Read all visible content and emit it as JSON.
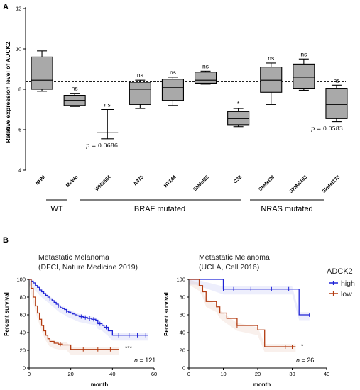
{
  "panel_a_label": "A",
  "panel_b_label": "B",
  "chart_data": [
    {
      "type": "box",
      "ylabel": "Relative expression level of ADCK2",
      "ylim": [
        4,
        12
      ],
      "yticks": [
        "4",
        "6",
        "8",
        "10",
        "12"
      ],
      "reference_line": 8.4,
      "categories": [
        "NHM",
        "MeWo",
        "WM2664",
        "A375",
        "HT144",
        "SkMel28",
        "C32",
        "SkMel30",
        "SkMel103",
        "SkMel173"
      ],
      "boxes": [
        {
          "min": 7.9,
          "q1": 8.0,
          "median": 8.45,
          "q3": 9.6,
          "max": 9.9,
          "sig": ""
        },
        {
          "min": 7.15,
          "q1": 7.2,
          "median": 7.45,
          "q3": 7.7,
          "max": 7.8,
          "sig": "ns"
        },
        {
          "min": 5.55,
          "q1": 5.85,
          "median": 5.85,
          "q3": 5.85,
          "max": 7.0,
          "sig": "ns",
          "style": "line"
        },
        {
          "min": 7.05,
          "q1": 7.25,
          "median": 8.0,
          "q3": 8.35,
          "max": 8.45,
          "sig": "ns"
        },
        {
          "min": 7.2,
          "q1": 7.45,
          "median": 8.1,
          "q3": 8.5,
          "max": 8.6,
          "sig": "ns"
        },
        {
          "min": 8.25,
          "q1": 8.3,
          "median": 8.45,
          "q3": 8.85,
          "max": 8.9,
          "sig": "ns"
        },
        {
          "min": 6.15,
          "q1": 6.25,
          "median": 6.55,
          "q3": 6.9,
          "max": 7.05,
          "sig": "*"
        },
        {
          "min": 7.25,
          "q1": 7.85,
          "median": 8.45,
          "q3": 9.1,
          "max": 9.3,
          "sig": "ns"
        },
        {
          "min": 7.95,
          "q1": 8.05,
          "median": 8.6,
          "q3": 9.25,
          "max": 9.5,
          "sig": "ns"
        },
        {
          "min": 6.4,
          "q1": 6.55,
          "median": 7.25,
          "q3": 8.05,
          "max": 8.2,
          "sig": "ns"
        }
      ],
      "p_annotations": [
        {
          "prefix": "p",
          "text": " = 0.0686"
        },
        {
          "prefix": "p",
          "text": " = 0.0583"
        }
      ],
      "groups": [
        {
          "label": "WT"
        },
        {
          "label": "BRAF mutated"
        },
        {
          "label": "NRAS mutated"
        }
      ]
    },
    {
      "type": "line",
      "title_line1": "Metastatic Melanoma",
      "title_line2": "(DFCI, Nature Medicine 2019)",
      "ylabel": "Percent survival",
      "xlabel": "month",
      "xlim": [
        0,
        60
      ],
      "ylim": [
        0,
        100
      ],
      "xticks": [
        "0",
        "20",
        "40",
        "60"
      ],
      "yticks": [
        "0",
        "20",
        "40",
        "60",
        "80",
        "100"
      ],
      "sig": "***",
      "n_prefix": "n",
      "n_text": " = 121",
      "series": [
        {
          "name": "high",
          "color": "#1f23d6",
          "x": [
            0,
            1,
            2,
            3,
            4,
            5,
            6,
            7,
            8,
            9,
            10,
            11,
            12,
            13,
            14,
            15,
            16,
            17,
            18,
            19,
            20,
            21,
            22,
            23,
            24,
            26,
            28,
            30,
            32,
            33,
            35,
            36,
            38,
            40,
            45,
            50,
            55,
            57
          ],
          "y": [
            100,
            98,
            96,
            93,
            91,
            88,
            86,
            84,
            82,
            80,
            78,
            76,
            74,
            72,
            70,
            68,
            67,
            66,
            64,
            63,
            62,
            61,
            60,
            59,
            58,
            57,
            56,
            55,
            54,
            50,
            48,
            46,
            42,
            37,
            37,
            37,
            37,
            37
          ],
          "censor_x": [
            10,
            14,
            18,
            22,
            25,
            27,
            29,
            31,
            34,
            37,
            43,
            48,
            52,
            56
          ]
        },
        {
          "name": "low",
          "color": "#b33b10",
          "x": [
            0,
            1,
            2,
            3,
            4,
            5,
            6,
            7,
            8,
            9,
            10,
            12,
            14,
            16,
            18,
            20,
            25,
            30,
            35,
            40,
            43
          ],
          "y": [
            100,
            90,
            80,
            70,
            62,
            55,
            48,
            42,
            37,
            33,
            30,
            28,
            27,
            26,
            26,
            21,
            21,
            21,
            21,
            21,
            21
          ],
          "censor_x": [
            15,
            26,
            33,
            39
          ]
        }
      ]
    },
    {
      "type": "line",
      "title_line1": "Metastatic Melanoma",
      "title_line2": "(UCLA, Cell 2016)",
      "ylabel": "Percent survival",
      "xlabel": "month",
      "xlim": [
        0,
        40
      ],
      "ylim": [
        0,
        100
      ],
      "xticks": [
        "0",
        "10",
        "20",
        "30",
        "40"
      ],
      "yticks": [
        "0",
        "20",
        "40",
        "60",
        "80",
        "100"
      ],
      "sig": "*",
      "n_prefix": "n",
      "n_text": " = 26",
      "legend_title": "ADCK2",
      "series": [
        {
          "name": "high",
          "color": "#1f23d6",
          "x": [
            0,
            2,
            10,
            12,
            15,
            20,
            25,
            30,
            32,
            35
          ],
          "y": [
            100,
            100,
            89,
            89,
            89,
            89,
            89,
            89,
            60,
            60
          ],
          "censor_x": [
            10,
            13,
            18,
            24,
            29,
            35
          ]
        },
        {
          "name": "low",
          "color": "#b33b10",
          "x": [
            0,
            3,
            4,
            5,
            8,
            9,
            11,
            14,
            20,
            22,
            25,
            30,
            31
          ],
          "y": [
            100,
            93,
            86,
            75,
            69,
            62,
            56,
            48,
            43,
            24,
            24,
            24,
            24
          ],
          "censor_x": [
            14,
            28,
            30
          ]
        }
      ]
    }
  ]
}
